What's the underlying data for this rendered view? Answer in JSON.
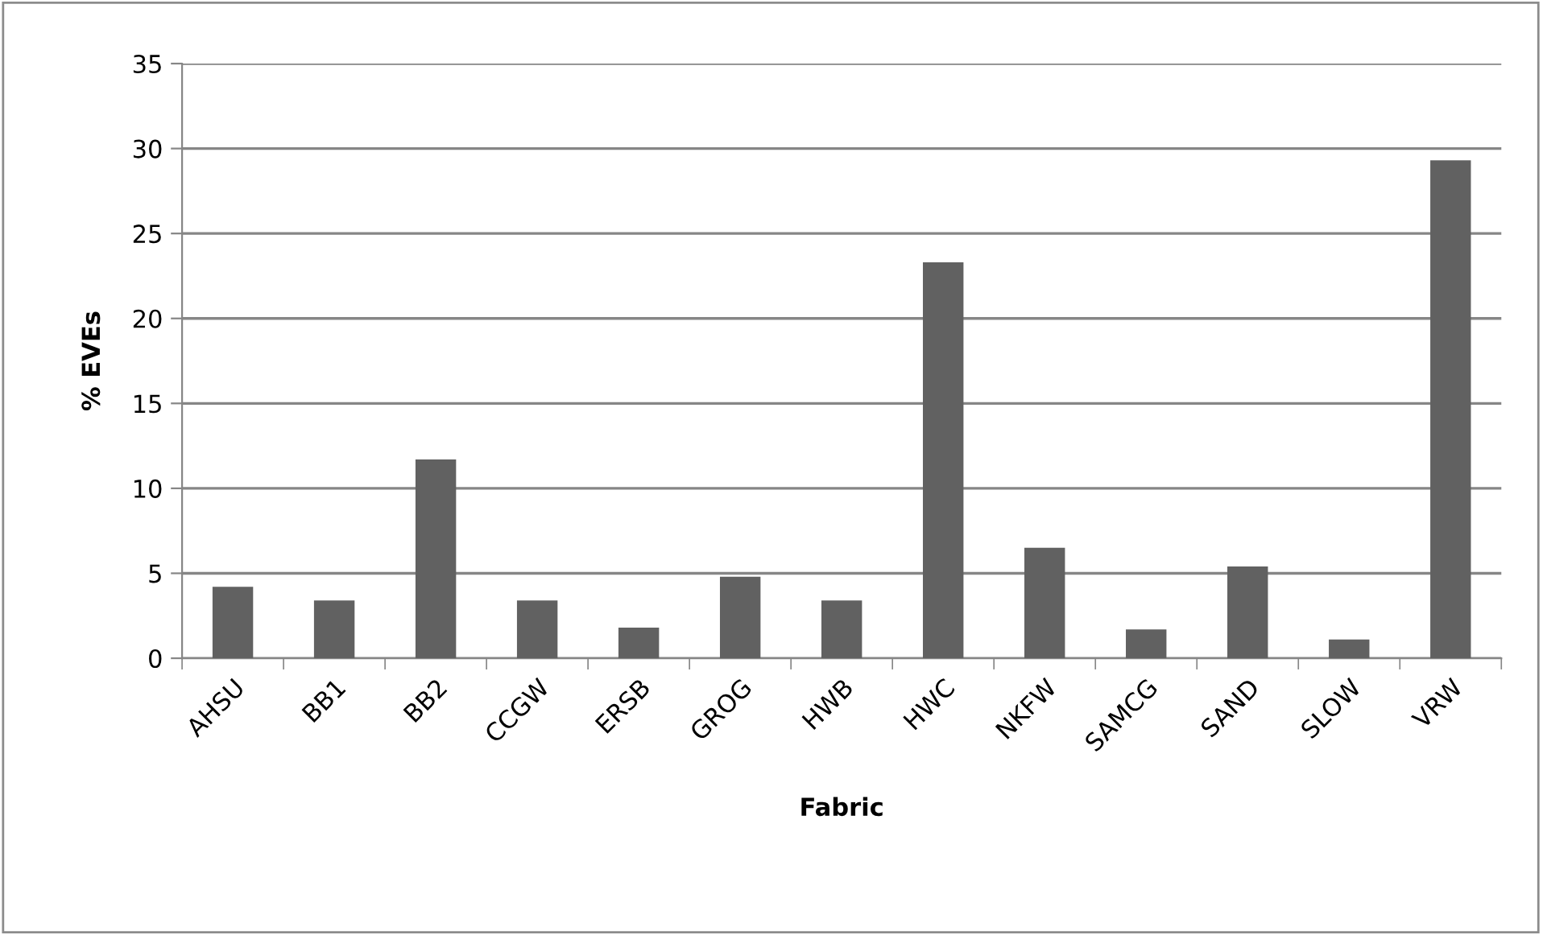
{
  "chart_data": {
    "type": "bar",
    "xlabel": "Fabric",
    "ylabel": "% EVEs",
    "categories": [
      "AHSU",
      "BB1",
      "BB2",
      "CCGW",
      "ERSB",
      "GROG",
      "HWB",
      "HWC",
      "NKFW",
      "SAMCG",
      "SAND",
      "SLOW",
      "VRW"
    ],
    "values": [
      4.2,
      3.4,
      11.7,
      3.4,
      1.8,
      4.8,
      3.4,
      23.3,
      6.5,
      1.7,
      5.4,
      1.1,
      29.3
    ],
    "color": "#616161",
    "ylim": [
      0,
      35
    ],
    "yticks": [
      0,
      5,
      10,
      15,
      20,
      25,
      30,
      35
    ],
    "grid": "y"
  }
}
